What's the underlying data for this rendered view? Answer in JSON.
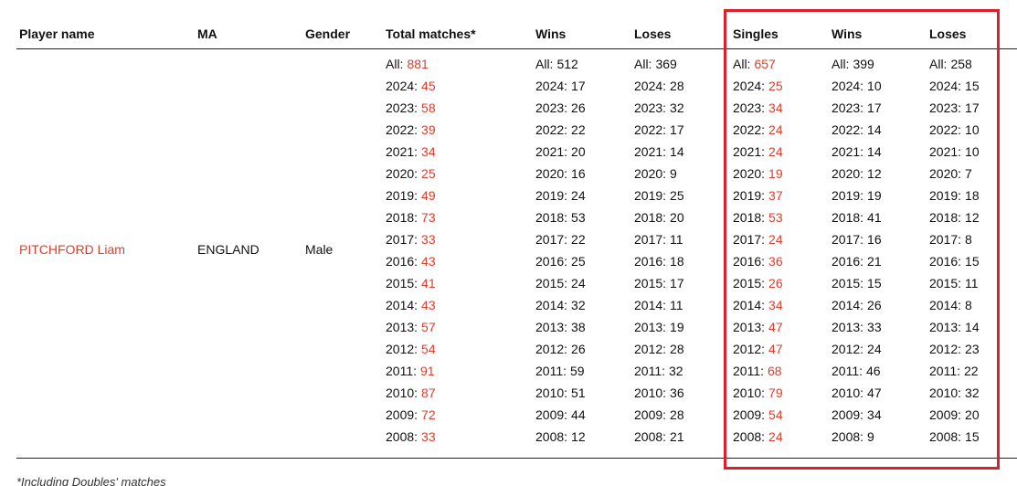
{
  "table": {
    "headers": [
      "Player name",
      "MA",
      "Gender",
      "Total matches*",
      "Wins",
      "Loses",
      "Singles",
      "Wins",
      "Loses"
    ],
    "row": {
      "player": "PITCHFORD Liam",
      "ma": "ENGLAND",
      "gender": "Male"
    },
    "stat_labels": [
      "All:",
      "2024:",
      "2023:",
      "2022:",
      "2021:",
      "2020:",
      "2019:",
      "2018:",
      "2017:",
      "2016:",
      "2015:",
      "2014:",
      "2013:",
      "2012:",
      "2011:",
      "2010:",
      "2009:",
      "2008:"
    ],
    "stat_columns": [
      {
        "values": [
          881,
          45,
          58,
          39,
          34,
          25,
          49,
          73,
          33,
          43,
          41,
          43,
          57,
          54,
          91,
          87,
          72,
          33
        ],
        "highlight": true
      },
      {
        "values": [
          512,
          17,
          26,
          22,
          20,
          16,
          24,
          53,
          22,
          25,
          24,
          32,
          38,
          26,
          59,
          51,
          44,
          12
        ],
        "highlight": false
      },
      {
        "values": [
          369,
          28,
          32,
          17,
          14,
          9,
          25,
          20,
          11,
          18,
          17,
          11,
          19,
          28,
          32,
          36,
          28,
          21
        ],
        "highlight": false
      },
      {
        "values": [
          657,
          25,
          34,
          24,
          24,
          19,
          37,
          53,
          24,
          36,
          26,
          34,
          47,
          47,
          68,
          79,
          54,
          24
        ],
        "highlight": true
      },
      {
        "values": [
          399,
          10,
          17,
          14,
          14,
          12,
          19,
          41,
          16,
          21,
          15,
          26,
          33,
          24,
          46,
          47,
          34,
          9
        ],
        "highlight": false
      },
      {
        "values": [
          258,
          15,
          17,
          10,
          10,
          7,
          18,
          12,
          8,
          15,
          11,
          8,
          14,
          23,
          22,
          32,
          20,
          15
        ],
        "highlight": false
      }
    ],
    "highlight_color": "#d9402f"
  },
  "footnote": "*Including Doubles' matches"
}
